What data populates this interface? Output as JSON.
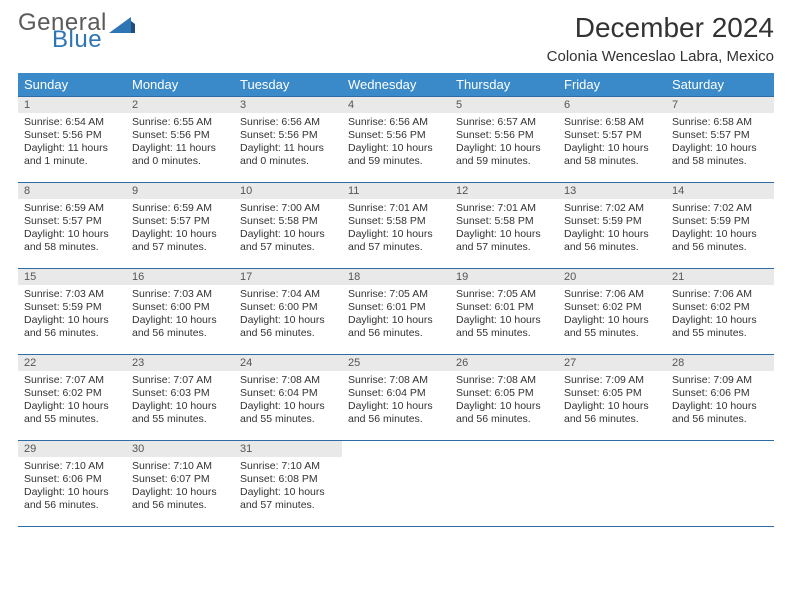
{
  "brand": {
    "word1": "General",
    "word2": "Blue",
    "icon_color": "#2e75b6"
  },
  "header": {
    "month_title": "December 2024",
    "location": "Colonia Wenceslao Labra, Mexico"
  },
  "colors": {
    "header_bg": "#3a8ac9",
    "header_text": "#ffffff",
    "daynum_bg": "#e9e9e9",
    "rule": "#2e6da4",
    "body_text": "#333333"
  },
  "days_of_week": [
    "Sunday",
    "Monday",
    "Tuesday",
    "Wednesday",
    "Thursday",
    "Friday",
    "Saturday"
  ],
  "weeks": [
    [
      {
        "n": "1",
        "sr": "Sunrise: 6:54 AM",
        "ss": "Sunset: 5:56 PM",
        "dl": "Daylight: 11 hours and 1 minute."
      },
      {
        "n": "2",
        "sr": "Sunrise: 6:55 AM",
        "ss": "Sunset: 5:56 PM",
        "dl": "Daylight: 11 hours and 0 minutes."
      },
      {
        "n": "3",
        "sr": "Sunrise: 6:56 AM",
        "ss": "Sunset: 5:56 PM",
        "dl": "Daylight: 11 hours and 0 minutes."
      },
      {
        "n": "4",
        "sr": "Sunrise: 6:56 AM",
        "ss": "Sunset: 5:56 PM",
        "dl": "Daylight: 10 hours and 59 minutes."
      },
      {
        "n": "5",
        "sr": "Sunrise: 6:57 AM",
        "ss": "Sunset: 5:56 PM",
        "dl": "Daylight: 10 hours and 59 minutes."
      },
      {
        "n": "6",
        "sr": "Sunrise: 6:58 AM",
        "ss": "Sunset: 5:57 PM",
        "dl": "Daylight: 10 hours and 58 minutes."
      },
      {
        "n": "7",
        "sr": "Sunrise: 6:58 AM",
        "ss": "Sunset: 5:57 PM",
        "dl": "Daylight: 10 hours and 58 minutes."
      }
    ],
    [
      {
        "n": "8",
        "sr": "Sunrise: 6:59 AM",
        "ss": "Sunset: 5:57 PM",
        "dl": "Daylight: 10 hours and 58 minutes."
      },
      {
        "n": "9",
        "sr": "Sunrise: 6:59 AM",
        "ss": "Sunset: 5:57 PM",
        "dl": "Daylight: 10 hours and 57 minutes."
      },
      {
        "n": "10",
        "sr": "Sunrise: 7:00 AM",
        "ss": "Sunset: 5:58 PM",
        "dl": "Daylight: 10 hours and 57 minutes."
      },
      {
        "n": "11",
        "sr": "Sunrise: 7:01 AM",
        "ss": "Sunset: 5:58 PM",
        "dl": "Daylight: 10 hours and 57 minutes."
      },
      {
        "n": "12",
        "sr": "Sunrise: 7:01 AM",
        "ss": "Sunset: 5:58 PM",
        "dl": "Daylight: 10 hours and 57 minutes."
      },
      {
        "n": "13",
        "sr": "Sunrise: 7:02 AM",
        "ss": "Sunset: 5:59 PM",
        "dl": "Daylight: 10 hours and 56 minutes."
      },
      {
        "n": "14",
        "sr": "Sunrise: 7:02 AM",
        "ss": "Sunset: 5:59 PM",
        "dl": "Daylight: 10 hours and 56 minutes."
      }
    ],
    [
      {
        "n": "15",
        "sr": "Sunrise: 7:03 AM",
        "ss": "Sunset: 5:59 PM",
        "dl": "Daylight: 10 hours and 56 minutes."
      },
      {
        "n": "16",
        "sr": "Sunrise: 7:03 AM",
        "ss": "Sunset: 6:00 PM",
        "dl": "Daylight: 10 hours and 56 minutes."
      },
      {
        "n": "17",
        "sr": "Sunrise: 7:04 AM",
        "ss": "Sunset: 6:00 PM",
        "dl": "Daylight: 10 hours and 56 minutes."
      },
      {
        "n": "18",
        "sr": "Sunrise: 7:05 AM",
        "ss": "Sunset: 6:01 PM",
        "dl": "Daylight: 10 hours and 56 minutes."
      },
      {
        "n": "19",
        "sr": "Sunrise: 7:05 AM",
        "ss": "Sunset: 6:01 PM",
        "dl": "Daylight: 10 hours and 55 minutes."
      },
      {
        "n": "20",
        "sr": "Sunrise: 7:06 AM",
        "ss": "Sunset: 6:02 PM",
        "dl": "Daylight: 10 hours and 55 minutes."
      },
      {
        "n": "21",
        "sr": "Sunrise: 7:06 AM",
        "ss": "Sunset: 6:02 PM",
        "dl": "Daylight: 10 hours and 55 minutes."
      }
    ],
    [
      {
        "n": "22",
        "sr": "Sunrise: 7:07 AM",
        "ss": "Sunset: 6:02 PM",
        "dl": "Daylight: 10 hours and 55 minutes."
      },
      {
        "n": "23",
        "sr": "Sunrise: 7:07 AM",
        "ss": "Sunset: 6:03 PM",
        "dl": "Daylight: 10 hours and 55 minutes."
      },
      {
        "n": "24",
        "sr": "Sunrise: 7:08 AM",
        "ss": "Sunset: 6:04 PM",
        "dl": "Daylight: 10 hours and 55 minutes."
      },
      {
        "n": "25",
        "sr": "Sunrise: 7:08 AM",
        "ss": "Sunset: 6:04 PM",
        "dl": "Daylight: 10 hours and 56 minutes."
      },
      {
        "n": "26",
        "sr": "Sunrise: 7:08 AM",
        "ss": "Sunset: 6:05 PM",
        "dl": "Daylight: 10 hours and 56 minutes."
      },
      {
        "n": "27",
        "sr": "Sunrise: 7:09 AM",
        "ss": "Sunset: 6:05 PM",
        "dl": "Daylight: 10 hours and 56 minutes."
      },
      {
        "n": "28",
        "sr": "Sunrise: 7:09 AM",
        "ss": "Sunset: 6:06 PM",
        "dl": "Daylight: 10 hours and 56 minutes."
      }
    ],
    [
      {
        "n": "29",
        "sr": "Sunrise: 7:10 AM",
        "ss": "Sunset: 6:06 PM",
        "dl": "Daylight: 10 hours and 56 minutes."
      },
      {
        "n": "30",
        "sr": "Sunrise: 7:10 AM",
        "ss": "Sunset: 6:07 PM",
        "dl": "Daylight: 10 hours and 56 minutes."
      },
      {
        "n": "31",
        "sr": "Sunrise: 7:10 AM",
        "ss": "Sunset: 6:08 PM",
        "dl": "Daylight: 10 hours and 57 minutes."
      },
      null,
      null,
      null,
      null
    ]
  ]
}
